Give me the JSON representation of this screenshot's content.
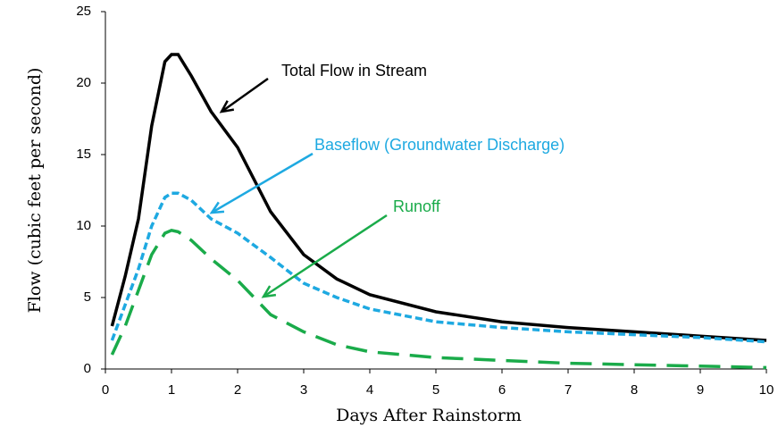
{
  "chart_data": {
    "type": "line",
    "xlabel": "Days After Rainstorm",
    "ylabel": "Flow (cubic feet per second)",
    "x": [
      0.1,
      0.3,
      0.5,
      0.7,
      0.9,
      1,
      1.1,
      1.3,
      1.6,
      2,
      2.5,
      3,
      3.5,
      4,
      5,
      6,
      7,
      8,
      9,
      10
    ],
    "series": [
      {
        "name": "Total Flow in Stream",
        "color": "#000000",
        "values": [
          3,
          6.5,
          10.5,
          17,
          21.5,
          22,
          22,
          20.5,
          18,
          15.5,
          11,
          8,
          6.3,
          5.2,
          4,
          3.3,
          2.9,
          2.6,
          2.3,
          2
        ]
      },
      {
        "name": "Baseflow (Groundwater Discharge)",
        "color": "#1ea9e1",
        "values": [
          2,
          4.5,
          7,
          10,
          12,
          12.3,
          12.3,
          11.8,
          10.5,
          9.5,
          7.8,
          6,
          5,
          4.2,
          3.3,
          2.9,
          2.6,
          2.4,
          2.2,
          1.9
        ]
      },
      {
        "name": "Runoff",
        "color": "#1aab4a",
        "values": [
          1,
          3,
          5.5,
          8,
          9.5,
          9.7,
          9.6,
          9,
          7.7,
          6.2,
          3.8,
          2.6,
          1.7,
          1.2,
          0.8,
          0.6,
          0.4,
          0.3,
          0.2,
          0.1
        ]
      }
    ],
    "xlim": [
      0,
      10
    ],
    "xticks": [
      0,
      1,
      2,
      3,
      4,
      5,
      6,
      7,
      8,
      9,
      10
    ],
    "ylim": [
      0,
      25
    ],
    "yticks": [
      0,
      5,
      10,
      15,
      20,
      25
    ],
    "grid": false
  }
}
